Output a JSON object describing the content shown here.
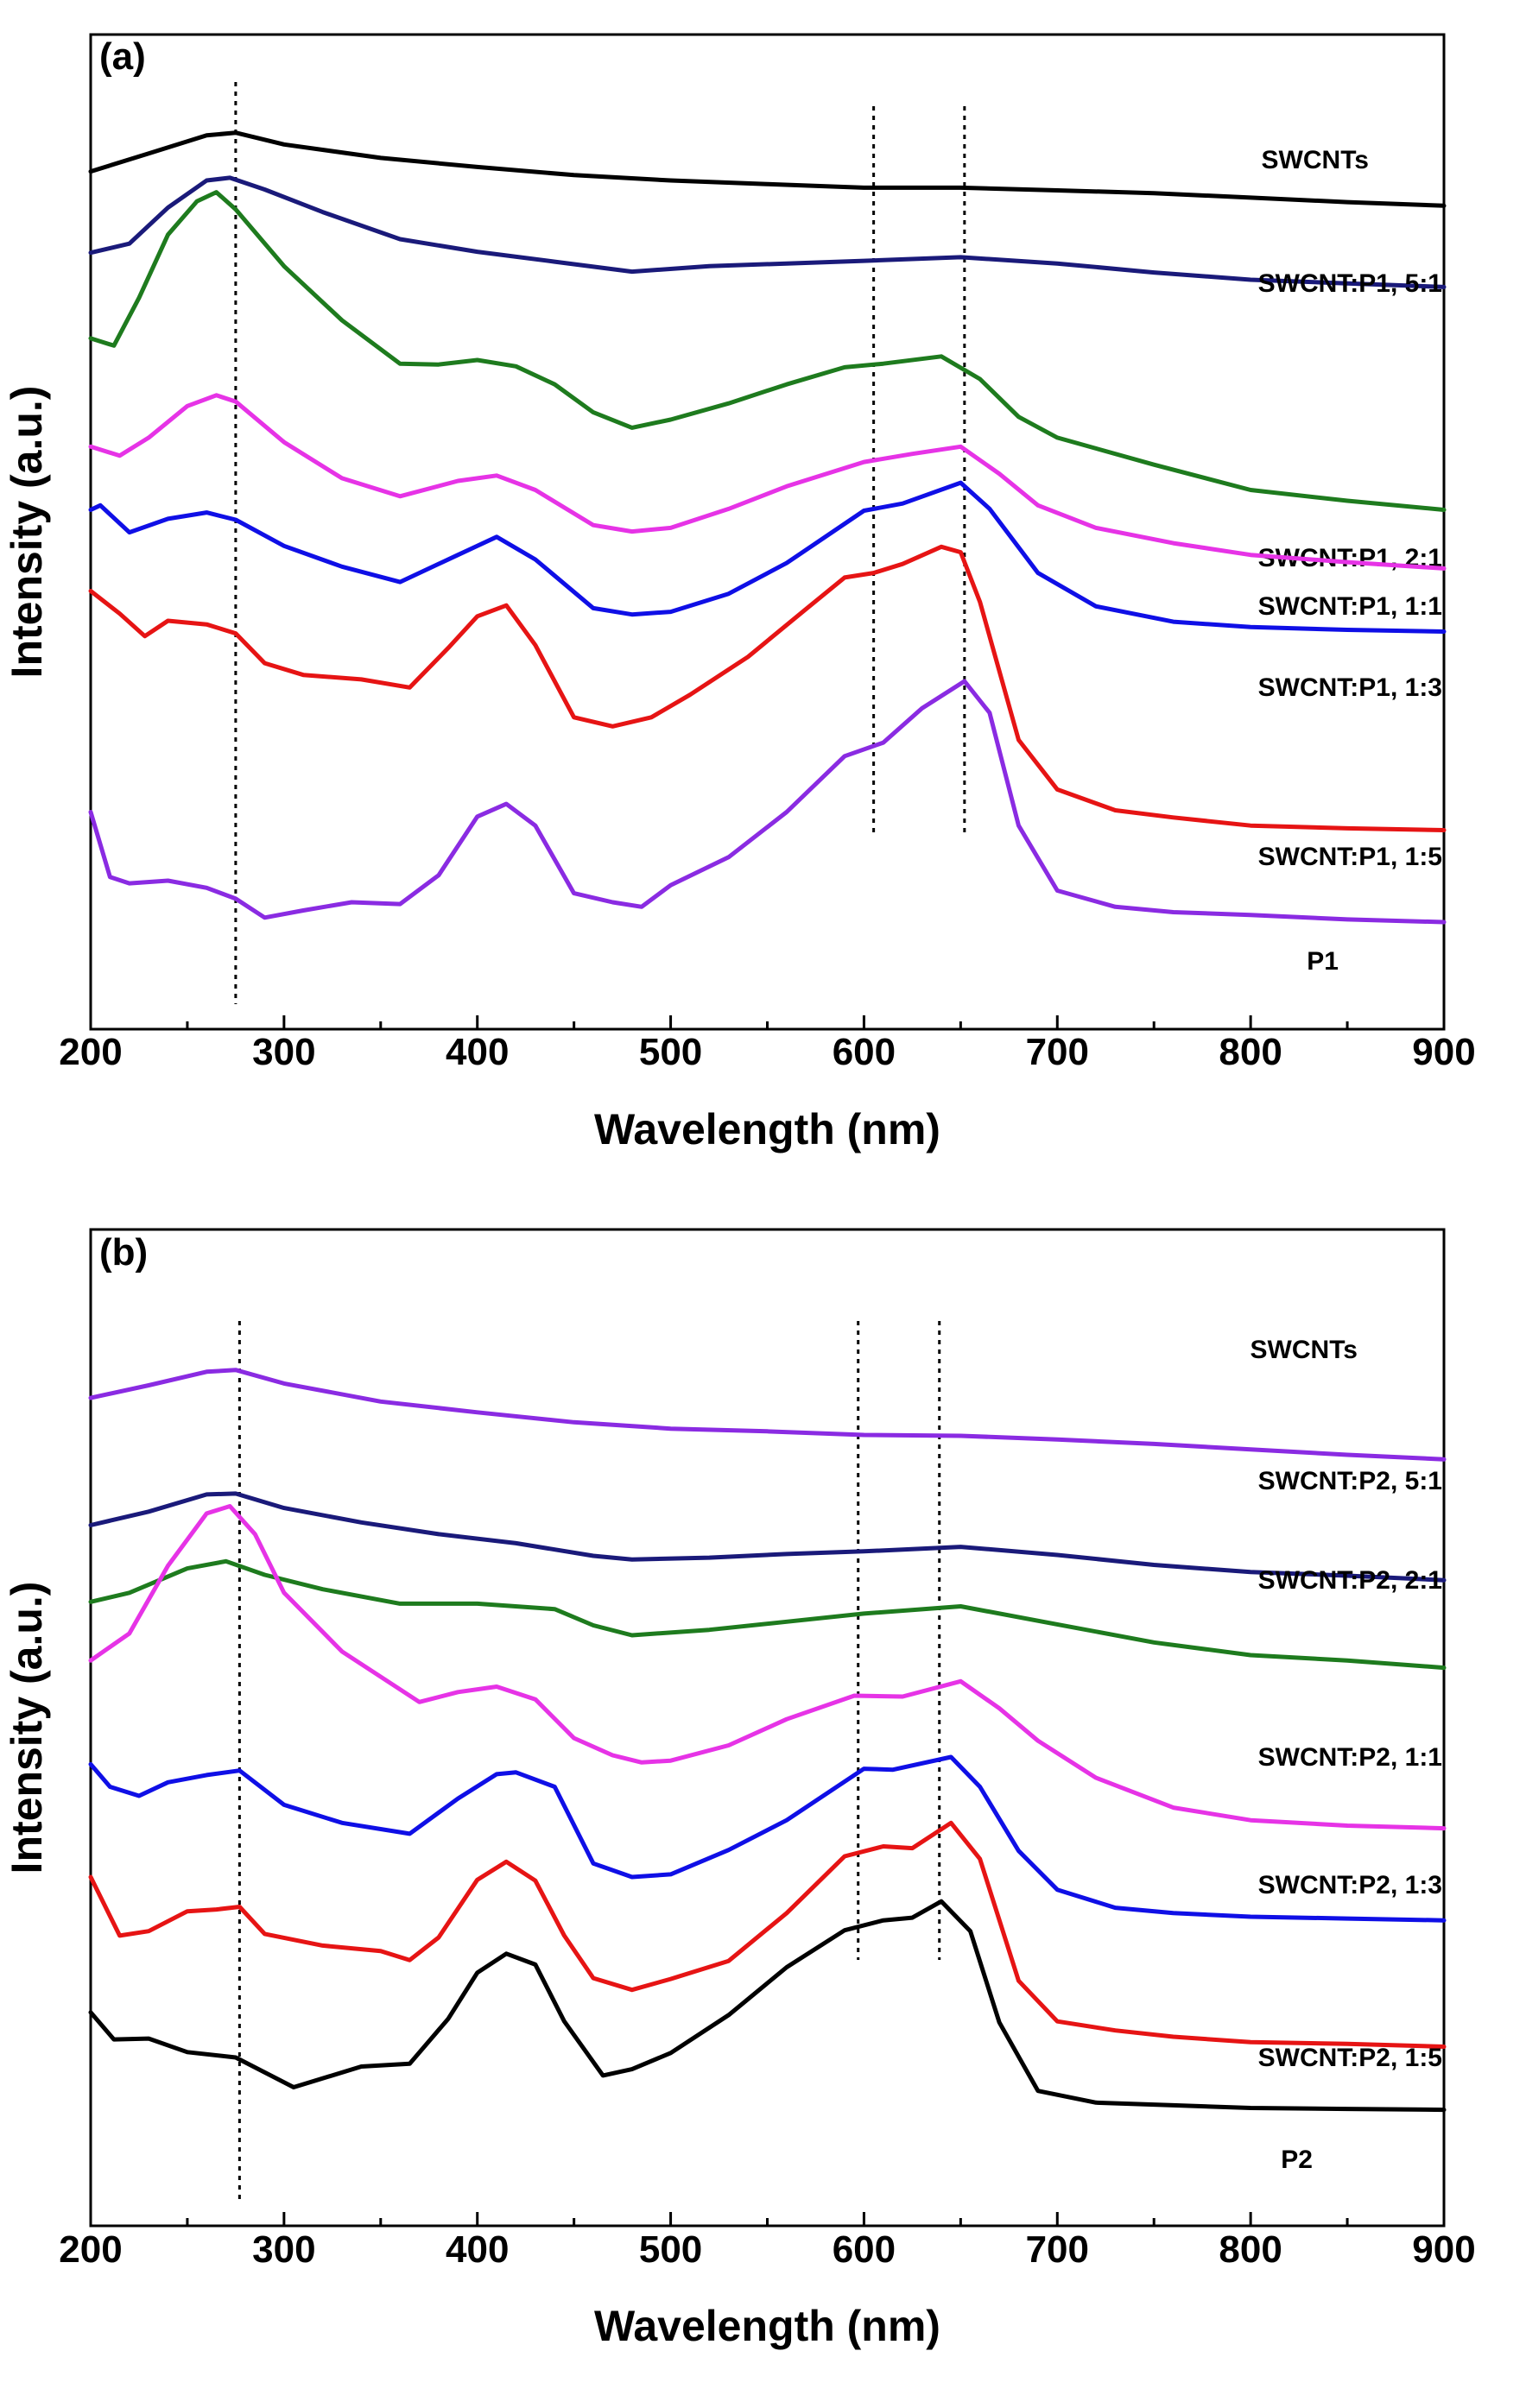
{
  "chart_data": [
    {
      "type": "line",
      "panel_label": "(a)",
      "xlabel": "Wavelength (nm)",
      "ylabel": "Intensity (a.u.)",
      "xlim": [
        200,
        900
      ],
      "ylim": [
        0,
        100
      ],
      "x_ticks": [
        "200",
        "300",
        "400",
        "500",
        "600",
        "700",
        "800",
        "900"
      ],
      "reference_lines_nm": [
        275,
        605,
        652
      ],
      "series": [
        {
          "name": "SWCNTs",
          "color": "#000000",
          "x": [
            200,
            230,
            260,
            275,
            300,
            350,
            400,
            450,
            500,
            550,
            600,
            650,
            700,
            750,
            800,
            850,
            900
          ],
          "values": [
            92,
            94,
            96,
            96.3,
            95,
            93.5,
            92.5,
            91.6,
            91,
            90.6,
            90.2,
            90.2,
            89.9,
            89.6,
            89.1,
            88.6,
            88.2
          ]
        },
        {
          "name": "SWCNT:P1, 5:1",
          "color": "#1a1a7a",
          "x": [
            200,
            220,
            240,
            260,
            272,
            290,
            320,
            360,
            400,
            440,
            480,
            520,
            560,
            600,
            650,
            700,
            750,
            800,
            850,
            900
          ],
          "values": [
            83,
            84,
            88,
            91,
            91.3,
            90,
            87.5,
            84.5,
            83.1,
            82,
            80.9,
            81.5,
            81.8,
            82.1,
            82.5,
            81.8,
            80.8,
            80,
            79.6,
            79.2
          ]
        },
        {
          "name": "SWCNT:P1, 2:1",
          "color": "#1e7b1e",
          "x": [
            200,
            212,
            225,
            240,
            255,
            265,
            275,
            300,
            330,
            360,
            380,
            400,
            420,
            440,
            460,
            480,
            500,
            530,
            560,
            590,
            610,
            640,
            660,
            680,
            700,
            750,
            800,
            850,
            900
          ],
          "values": [
            73.5,
            72.7,
            78,
            85,
            88.7,
            89.7,
            87.8,
            81.5,
            75.5,
            70.7,
            70.6,
            71.1,
            70.4,
            68.4,
            65.3,
            63.6,
            64.5,
            66.3,
            68.4,
            70.3,
            70.7,
            71.5,
            69,
            64.8,
            62.5,
            59.5,
            56.7,
            55.5,
            54.5
          ]
        },
        {
          "name": "SWCNT:P1, 1:1",
          "color": "#e633e6",
          "x": [
            200,
            215,
            230,
            250,
            265,
            275,
            300,
            330,
            360,
            390,
            410,
            430,
            460,
            480,
            500,
            530,
            560,
            600,
            625,
            650,
            670,
            690,
            720,
            760,
            800,
            850,
            900
          ],
          "values": [
            61.5,
            60.5,
            62.5,
            66,
            67.2,
            66.5,
            62,
            58,
            56,
            57.7,
            58.3,
            56.7,
            52.8,
            52.1,
            52.5,
            54.6,
            57.1,
            59.8,
            60.7,
            61.5,
            58.5,
            55,
            52.5,
            50.8,
            49.5,
            48.7,
            48
          ]
        },
        {
          "name": "SWCNT:P1, 1:3",
          "color": "#0f0fe6",
          "x": [
            200,
            205,
            220,
            240,
            260,
            275,
            300,
            330,
            360,
            390,
            410,
            430,
            460,
            480,
            500,
            530,
            560,
            600,
            620,
            650,
            665,
            690,
            720,
            760,
            800,
            850,
            900
          ],
          "values": [
            54.5,
            55,
            52,
            53.5,
            54.2,
            53.4,
            50.5,
            48.2,
            46.5,
            49.5,
            51.5,
            49,
            43.6,
            42.9,
            43.2,
            45.2,
            48.6,
            54.4,
            55.2,
            57.5,
            54.6,
            47.5,
            43.8,
            42.1,
            41.5,
            41.2,
            41
          ]
        },
        {
          "name": "SWCNT:P1, 1:5",
          "color": "#e61414",
          "x": [
            200,
            215,
            228,
            240,
            260,
            275,
            290,
            310,
            340,
            365,
            385,
            400,
            415,
            430,
            450,
            470,
            490,
            510,
            540,
            570,
            590,
            605,
            620,
            640,
            650,
            660,
            680,
            700,
            730,
            760,
            800,
            850,
            900
          ],
          "values": [
            45.5,
            43,
            40.5,
            42.2,
            41.8,
            40.8,
            37.5,
            36.2,
            35.7,
            34.8,
            39.2,
            42.7,
            43.9,
            39.5,
            31.5,
            30.5,
            31.5,
            34,
            38.2,
            43.5,
            47,
            47.5,
            48.5,
            50.4,
            49.8,
            44.3,
            29,
            23.5,
            21.2,
            20.4,
            19.5,
            19.2,
            19
          ]
        },
        {
          "name": "P1",
          "color": "#8a2be2",
          "x": [
            200,
            210,
            220,
            240,
            260,
            275,
            290,
            310,
            335,
            360,
            380,
            400,
            415,
            430,
            450,
            470,
            485,
            500,
            530,
            560,
            590,
            610,
            630,
            652,
            665,
            680,
            700,
            730,
            760,
            800,
            850,
            900
          ],
          "values": [
            21,
            13.8,
            13.1,
            13.4,
            12.6,
            11.4,
            9.3,
            10.1,
            11,
            10.8,
            14,
            20.5,
            21.9,
            19.5,
            12,
            11,
            10.5,
            12.9,
            16,
            21,
            27.2,
            28.7,
            32.5,
            35.5,
            32,
            19.5,
            12.3,
            10.5,
            9.9,
            9.6,
            9.1,
            8.8
          ]
        }
      ]
    },
    {
      "type": "line",
      "panel_label": "(b)",
      "xlabel": "Wavelength (nm)",
      "ylabel": "Intensity (a.u.)",
      "xlim": [
        200,
        900
      ],
      "ylim": [
        0,
        100
      ],
      "x_ticks": [
        "200",
        "300",
        "400",
        "500",
        "600",
        "700",
        "800",
        "900"
      ],
      "reference_lines_nm": [
        277,
        597,
        639
      ],
      "series": [
        {
          "name": "SWCNTs",
          "color": "#8a2be2",
          "x": [
            200,
            230,
            260,
            275,
            300,
            350,
            400,
            450,
            500,
            550,
            600,
            650,
            700,
            750,
            800,
            850,
            900
          ],
          "values": [
            88.6,
            90,
            91.5,
            91.7,
            90.2,
            88.2,
            87,
            85.9,
            85.2,
            84.9,
            84.5,
            84.4,
            84,
            83.5,
            82.9,
            82.3,
            81.8
          ]
        },
        {
          "name": "SWCNT:P2, 5:1",
          "color": "#1a1a7a",
          "x": [
            200,
            230,
            260,
            275,
            300,
            340,
            380,
            420,
            460,
            480,
            520,
            560,
            600,
            650,
            700,
            750,
            800,
            850,
            900
          ],
          "values": [
            74.5,
            76,
            77.9,
            78,
            76.4,
            74.8,
            73.5,
            72.5,
            71.1,
            70.7,
            70.9,
            71.3,
            71.6,
            72.1,
            71.2,
            70.1,
            69.3,
            68.9,
            68.4
          ]
        },
        {
          "name": "SWCNT:P2, 2:1",
          "color": "#1e7b1e",
          "x": [
            200,
            220,
            250,
            270,
            290,
            320,
            360,
            400,
            440,
            460,
            480,
            520,
            560,
            600,
            650,
            700,
            750,
            800,
            850,
            900
          ],
          "values": [
            66,
            67,
            69.7,
            70.5,
            69,
            67.4,
            65.8,
            65.8,
            65.2,
            63.4,
            62.3,
            62.9,
            63.8,
            64.7,
            65.5,
            63.5,
            61.5,
            60.1,
            59.5,
            58.7
          ]
        },
        {
          "name": "SWCNT:P2, 1:1",
          "color": "#e633e6",
          "x": [
            200,
            220,
            240,
            260,
            272,
            285,
            300,
            330,
            370,
            390,
            410,
            430,
            450,
            470,
            485,
            500,
            530,
            560,
            595,
            620,
            650,
            670,
            690,
            720,
            760,
            800,
            850,
            900
          ],
          "values": [
            59.5,
            62.5,
            70,
            75.8,
            76.6,
            73.5,
            67,
            60.5,
            54.9,
            56,
            56.6,
            55.2,
            50.9,
            49,
            48.2,
            48.4,
            50.1,
            53,
            55.6,
            55.5,
            57.2,
            54.2,
            50.6,
            46.5,
            43.2,
            41.8,
            41.2,
            40.9
          ]
        },
        {
          "name": "SWCNT:P2, 1:3",
          "color": "#0f0fe6",
          "x": [
            200,
            210,
            225,
            240,
            260,
            277,
            300,
            330,
            365,
            390,
            410,
            420,
            440,
            460,
            480,
            500,
            530,
            560,
            600,
            615,
            645,
            660,
            680,
            700,
            730,
            760,
            800,
            850,
            900
          ],
          "values": [
            48,
            45.5,
            44.5,
            46,
            46.8,
            47.3,
            43.5,
            41.5,
            40.3,
            44.2,
            46.9,
            47.1,
            45.5,
            37,
            35.5,
            35.8,
            38.5,
            41.8,
            47.5,
            47.4,
            48.8,
            45.5,
            38.4,
            34.1,
            32.1,
            31.5,
            31.1,
            30.9,
            30.7
          ]
        },
        {
          "name": "SWCNT:P2, 1:5",
          "color": "#e61414",
          "x": [
            200,
            215,
            230,
            250,
            265,
            277,
            290,
            320,
            350,
            365,
            380,
            400,
            415,
            430,
            445,
            460,
            480,
            500,
            530,
            560,
            590,
            610,
            625,
            645,
            660,
            680,
            700,
            730,
            760,
            800,
            850,
            900
          ],
          "values": [
            35.5,
            29,
            29.5,
            31.7,
            31.9,
            32.2,
            29.2,
            27.9,
            27.3,
            26.3,
            28.8,
            35.2,
            37.2,
            35.1,
            29,
            24.3,
            23,
            24.2,
            26.2,
            31.5,
            37.8,
            38.9,
            38.7,
            41.5,
            37.5,
            24,
            19.5,
            18.5,
            17.8,
            17.2,
            17,
            16.7
          ]
        },
        {
          "name": "P2",
          "color": "#000000",
          "x": [
            200,
            212,
            230,
            250,
            275,
            305,
            340,
            365,
            385,
            400,
            415,
            430,
            445,
            465,
            480,
            500,
            530,
            560,
            590,
            610,
            625,
            640,
            655,
            670,
            690,
            720,
            760,
            800,
            850,
            900
          ],
          "values": [
            20.5,
            17.5,
            17.6,
            16.1,
            15.5,
            12.2,
            14.5,
            14.8,
            19.8,
            24.9,
            27,
            25.8,
            19.5,
            13.5,
            14.2,
            16,
            20.2,
            25.5,
            29.6,
            30.7,
            31,
            32.8,
            29.5,
            19.4,
            11.8,
            10.5,
            10.2,
            9.9,
            9.8,
            9.7
          ]
        }
      ]
    }
  ]
}
